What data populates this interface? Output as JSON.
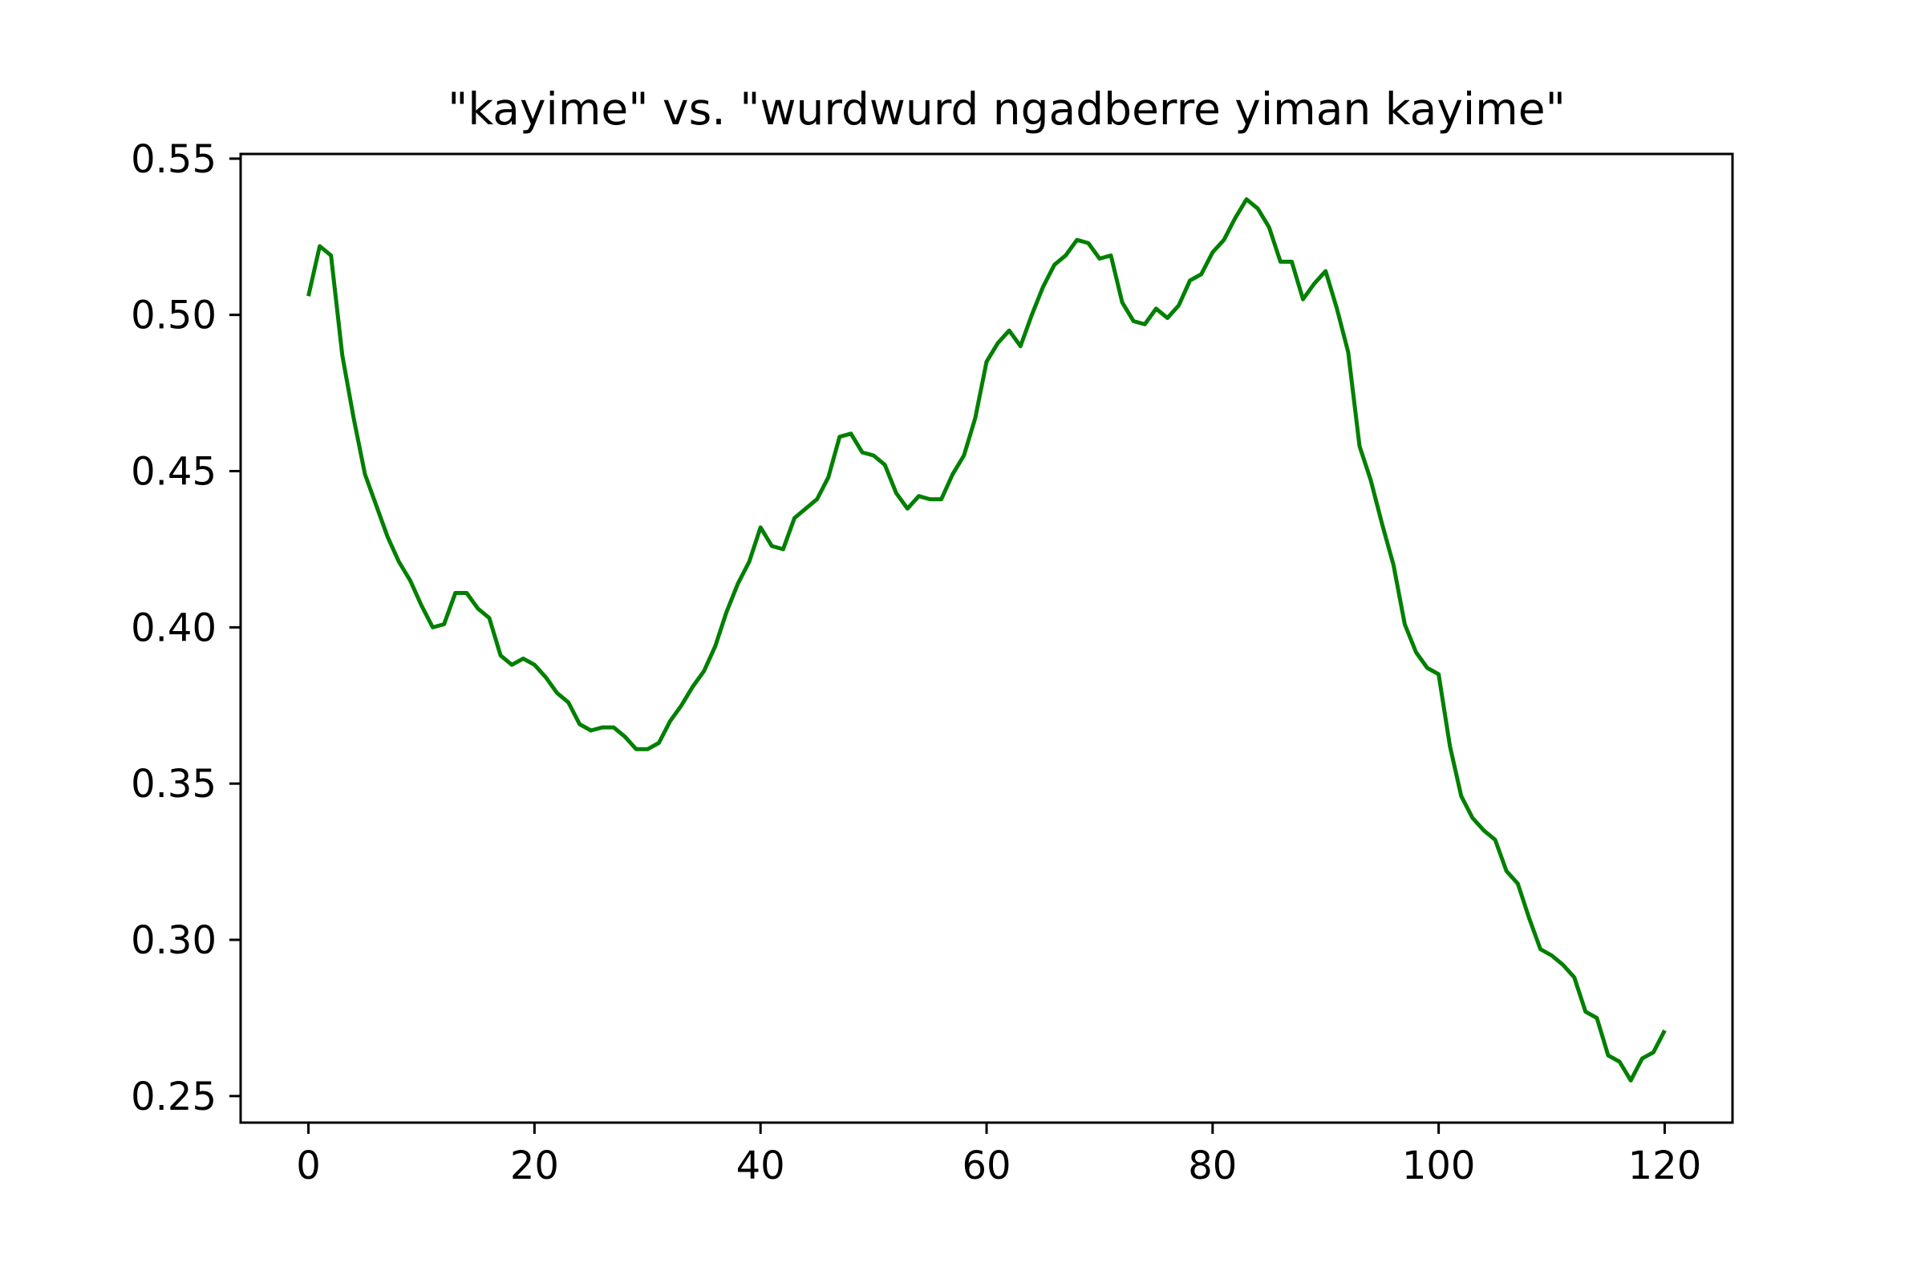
{
  "chart_data": {
    "type": "line",
    "title": "\"kayime\" vs. \"wurdwurd ngadberre yiman kayime\"",
    "xlabel": "",
    "ylabel": "",
    "xlim": [
      -6,
      126
    ],
    "ylim": [
      0.2415,
      0.5515
    ],
    "x_ticks": [
      0,
      20,
      40,
      60,
      80,
      100,
      120
    ],
    "x_tick_labels": [
      "0",
      "20",
      "40",
      "60",
      "80",
      "100",
      "120"
    ],
    "y_ticks": [
      0.25,
      0.3,
      0.35,
      0.4,
      0.45,
      0.5,
      0.55
    ],
    "y_tick_labels": [
      "0.25",
      "0.30",
      "0.35",
      "0.40",
      "0.45",
      "0.50",
      "0.55"
    ],
    "grid": false,
    "legend": "none",
    "series": [
      {
        "color": "#008000",
        "x": [
          0,
          1,
          2,
          3,
          4,
          5,
          6,
          7,
          8,
          9,
          10,
          11,
          12,
          13,
          14,
          15,
          16,
          17,
          18,
          19,
          20,
          21,
          22,
          23,
          24,
          25,
          26,
          27,
          28,
          29,
          30,
          31,
          32,
          33,
          34,
          35,
          36,
          37,
          38,
          39,
          40,
          41,
          42,
          43,
          44,
          45,
          46,
          47,
          48,
          49,
          50,
          51,
          52,
          53,
          54,
          55,
          56,
          57,
          58,
          59,
          60,
          61,
          62,
          63,
          64,
          65,
          66,
          67,
          68,
          69,
          70,
          71,
          72,
          73,
          74,
          75,
          76,
          77,
          78,
          79,
          80,
          81,
          82,
          83,
          84,
          85,
          86,
          87,
          88,
          89,
          90,
          91,
          92,
          93,
          94,
          95,
          96,
          97,
          98,
          99,
          100,
          101,
          102,
          103,
          104,
          105,
          106,
          107,
          108,
          109,
          110,
          111,
          112,
          113,
          114,
          115,
          116,
          117,
          118,
          119,
          120
        ],
        "y": [
          0.506,
          0.522,
          0.519,
          0.487,
          0.467,
          0.449,
          0.439,
          0.429,
          0.421,
          0.415,
          0.407,
          0.4,
          0.401,
          0.411,
          0.411,
          0.406,
          0.403,
          0.391,
          0.388,
          0.39,
          0.388,
          0.384,
          0.379,
          0.376,
          0.369,
          0.367,
          0.368,
          0.368,
          0.365,
          0.361,
          0.361,
          0.363,
          0.37,
          0.375,
          0.381,
          0.386,
          0.394,
          0.405,
          0.414,
          0.421,
          0.432,
          0.426,
          0.425,
          0.435,
          0.438,
          0.441,
          0.448,
          0.461,
          0.462,
          0.456,
          0.455,
          0.452,
          0.443,
          0.438,
          0.442,
          0.441,
          0.441,
          0.449,
          0.455,
          0.467,
          0.485,
          0.491,
          0.495,
          0.49,
          0.5,
          0.509,
          0.516,
          0.519,
          0.524,
          0.523,
          0.518,
          0.519,
          0.504,
          0.498,
          0.497,
          0.502,
          0.499,
          0.503,
          0.511,
          0.513,
          0.52,
          0.524,
          0.531,
          0.537,
          0.534,
          0.528,
          0.517,
          0.517,
          0.505,
          0.51,
          0.514,
          0.502,
          0.488,
          0.458,
          0.447,
          0.433,
          0.42,
          0.401,
          0.392,
          0.387,
          0.385,
          0.362,
          0.346,
          0.339,
          0.335,
          0.332,
          0.322,
          0.318,
          0.307,
          0.297,
          0.295,
          0.292,
          0.288,
          0.277,
          0.275,
          0.263,
          0.261,
          0.255,
          0.262,
          0.264,
          0.271
        ]
      }
    ]
  }
}
